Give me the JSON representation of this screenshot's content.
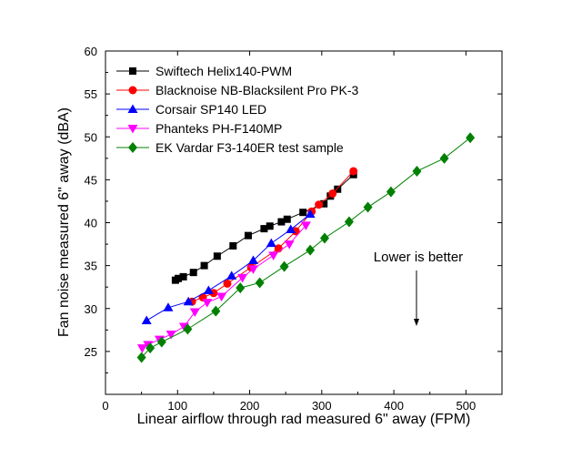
{
  "chart_data": {
    "type": "line",
    "title": "",
    "xlabel": "Linear airflow through rad measured 6\" away (FPM)",
    "ylabel": "Fan noise measured 6\" away (dBA)",
    "xlim": [
      0,
      550
    ],
    "ylim": [
      20,
      60
    ],
    "xticks": [
      0,
      100,
      200,
      300,
      400,
      500
    ],
    "yticks": [
      25,
      30,
      35,
      40,
      45,
      50,
      55,
      60
    ],
    "grid": false,
    "legend_position": "top-left",
    "annotation": "Lower is better",
    "series": [
      {
        "name": "Swiftech Helix140-PWM",
        "color": "#000000",
        "marker": "square",
        "points": [
          [
            97,
            33.3
          ],
          [
            101,
            33.5
          ],
          [
            108,
            33.7
          ],
          [
            122,
            34.2
          ],
          [
            137,
            35.0
          ],
          [
            155,
            36.1
          ],
          [
            177,
            37.3
          ],
          [
            198,
            38.5
          ],
          [
            220,
            39.3
          ],
          [
            228,
            39.6
          ],
          [
            244,
            40.1
          ],
          [
            252,
            40.4
          ],
          [
            274,
            41.2
          ],
          [
            303,
            42.2
          ],
          [
            312,
            43.1
          ],
          [
            322,
            43.9
          ],
          [
            344,
            45.6
          ]
        ]
      },
      {
        "name": "Blacknoise NB-Blacksilent Pro PK-3",
        "color": "#ff0000",
        "marker": "circle",
        "points": [
          [
            120,
            30.8
          ],
          [
            135,
            31.3
          ],
          [
            150,
            31.8
          ],
          [
            169,
            32.9
          ],
          [
            202,
            34.8
          ],
          [
            240,
            37.0
          ],
          [
            264,
            39.0
          ],
          [
            286,
            41.3
          ],
          [
            296,
            42.1
          ],
          [
            315,
            43.4
          ],
          [
            344,
            46.0
          ]
        ]
      },
      {
        "name": "Corsair SP140 LED",
        "color": "#0000ff",
        "marker": "triangle-up",
        "points": [
          [
            57,
            28.6
          ],
          [
            87,
            30.1
          ],
          [
            115,
            30.8
          ],
          [
            143,
            32.1
          ],
          [
            175,
            33.8
          ],
          [
            205,
            35.6
          ],
          [
            230,
            37.6
          ],
          [
            257,
            39.2
          ],
          [
            284,
            41.0
          ]
        ]
      },
      {
        "name": "Phanteks PH-F140MP",
        "color": "#ff00ff",
        "marker": "triangle-down",
        "points": [
          [
            51,
            25.4
          ],
          [
            59,
            25.8
          ],
          [
            75,
            26.4
          ],
          [
            91,
            27.0
          ],
          [
            109,
            27.9
          ],
          [
            124,
            29.6
          ],
          [
            141,
            30.7
          ],
          [
            161,
            31.4
          ],
          [
            190,
            33.6
          ],
          [
            205,
            34.6
          ],
          [
            233,
            36.2
          ],
          [
            255,
            37.5
          ],
          [
            278,
            39.7
          ]
        ]
      },
      {
        "name": "EK Vardar F3-140ER test sample",
        "color": "#008000",
        "marker": "diamond",
        "points": [
          [
            50,
            24.3
          ],
          [
            62,
            25.4
          ],
          [
            78,
            26.1
          ],
          [
            114,
            27.6
          ],
          [
            153,
            29.7
          ],
          [
            187,
            32.4
          ],
          [
            214,
            33.0
          ],
          [
            248,
            34.9
          ],
          [
            284,
            36.8
          ],
          [
            304,
            38.2
          ],
          [
            338,
            40.1
          ],
          [
            364,
            41.8
          ],
          [
            396,
            43.6
          ],
          [
            432,
            46.0
          ],
          [
            470,
            47.5
          ],
          [
            506,
            49.9
          ]
        ]
      }
    ]
  }
}
